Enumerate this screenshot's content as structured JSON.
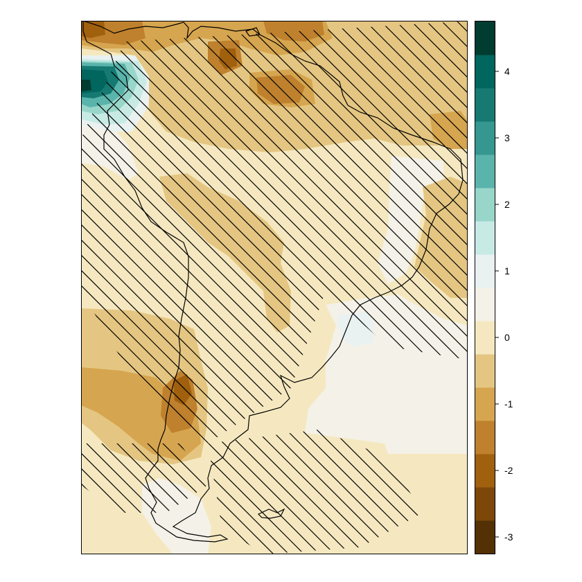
{
  "colorbar": {
    "ticks": [
      {
        "value": -3,
        "label": "-3"
      },
      {
        "value": -2,
        "label": "-2"
      },
      {
        "value": -1,
        "label": "-1"
      },
      {
        "value": 0,
        "label": "0"
      },
      {
        "value": 1,
        "label": "1"
      },
      {
        "value": 2,
        "label": "2"
      },
      {
        "value": 3,
        "label": "3"
      },
      {
        "value": 4,
        "label": "4"
      }
    ],
    "range": [
      -3.25,
      4.75
    ],
    "bins": [
      {
        "from": -3.25,
        "to": -2.75,
        "color": "#543005"
      },
      {
        "from": -2.75,
        "to": -2.25,
        "color": "#7d4709"
      },
      {
        "from": -2.25,
        "to": -1.75,
        "color": "#a0600d"
      },
      {
        "from": -1.75,
        "to": -1.25,
        "color": "#bf812d"
      },
      {
        "from": -1.25,
        "to": -0.75,
        "color": "#d6a54f"
      },
      {
        "from": -0.75,
        "to": -0.25,
        "color": "#e4c682"
      },
      {
        "from": -0.25,
        "to": 0.25,
        "color": "#f5e8c0"
      },
      {
        "from": 0.25,
        "to": 0.75,
        "color": "#f4f1e8"
      },
      {
        "from": 0.75,
        "to": 1.25,
        "color": "#e9f2f1"
      },
      {
        "from": 1.25,
        "to": 1.75,
        "color": "#c7eae5"
      },
      {
        "from": 1.75,
        "to": 2.25,
        "color": "#98d6ca"
      },
      {
        "from": 2.25,
        "to": 2.75,
        "color": "#5ab4ac"
      },
      {
        "from": 2.75,
        "to": 3.25,
        "color": "#35978f"
      },
      {
        "from": 3.25,
        "to": 3.75,
        "color": "#167a72"
      },
      {
        "from": 3.75,
        "to": 4.25,
        "color": "#01665e"
      },
      {
        "from": 4.25,
        "to": 4.75,
        "color": "#003c30"
      }
    ]
  },
  "map": {
    "region": "South America",
    "background_color": "#f5e8c0",
    "outline_color": "#000000",
    "hatch_color": "#000000"
  }
}
